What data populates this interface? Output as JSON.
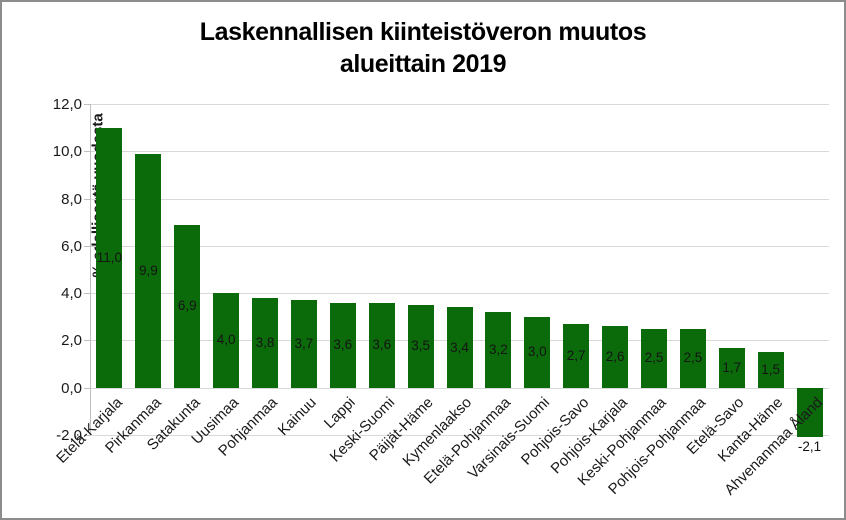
{
  "frame": {
    "background": "#ffffff",
    "border_color": "#8c8c8c"
  },
  "title": {
    "line1": "Laskennallisen kiinteistöveron muutos",
    "line2": "alueittain 2019"
  },
  "chart_data": {
    "type": "bar",
    "title": "Laskennallisen kiinteistöveron muutos alueittain 2019",
    "ylabel": "% edellisestä vuodesta",
    "xlabel": "",
    "categories": [
      "Etelä-Karjala",
      "Pirkanmaa",
      "Satakunta",
      "Uusimaa",
      "Pohjanmaa",
      "Kainuu",
      "Lappi",
      "Keski-Suomi",
      "Päijät-Häme",
      "Kymenlaakso",
      "Etelä-Pohjanmaa",
      "Varsinais-Suomi",
      "Pohjois-Savo",
      "Pohjois-Karjala",
      "Keski-Pohjanmaa",
      "Pohjois-Pohjanmaa",
      "Etelä-Savo",
      "Kanta-Häme",
      "Ahvenanmaa Åland"
    ],
    "values": [
      11.0,
      9.9,
      6.9,
      4.0,
      3.8,
      3.7,
      3.6,
      3.6,
      3.5,
      3.4,
      3.2,
      3.0,
      2.7,
      2.6,
      2.5,
      2.5,
      1.7,
      1.5,
      -2.1
    ],
    "value_labels": [
      "11,0",
      "9,9",
      "6,9",
      "4,0",
      "3,8",
      "3,7",
      "3,6",
      "3,6",
      "3,5",
      "3,4",
      "3,2",
      "3,0",
      "2,7",
      "2,6",
      "2,5",
      "2,5",
      "1,7",
      "1,5",
      "-2,1"
    ],
    "y_ticks": {
      "values": [
        12,
        10,
        8,
        6,
        4,
        2,
        0,
        -2
      ],
      "labels": [
        "12,0",
        "10,0",
        "8,0",
        "6,0",
        "4,0",
        "2,0",
        "0,0",
        "-2,0"
      ]
    },
    "ylim": [
      -2,
      12
    ],
    "grid": true,
    "legend": false,
    "bar_color": "#0b6b0b",
    "gridline_color": "#d9d9d9",
    "axis_color": "#bfbfbf",
    "text_color": "#1a1a1a"
  }
}
